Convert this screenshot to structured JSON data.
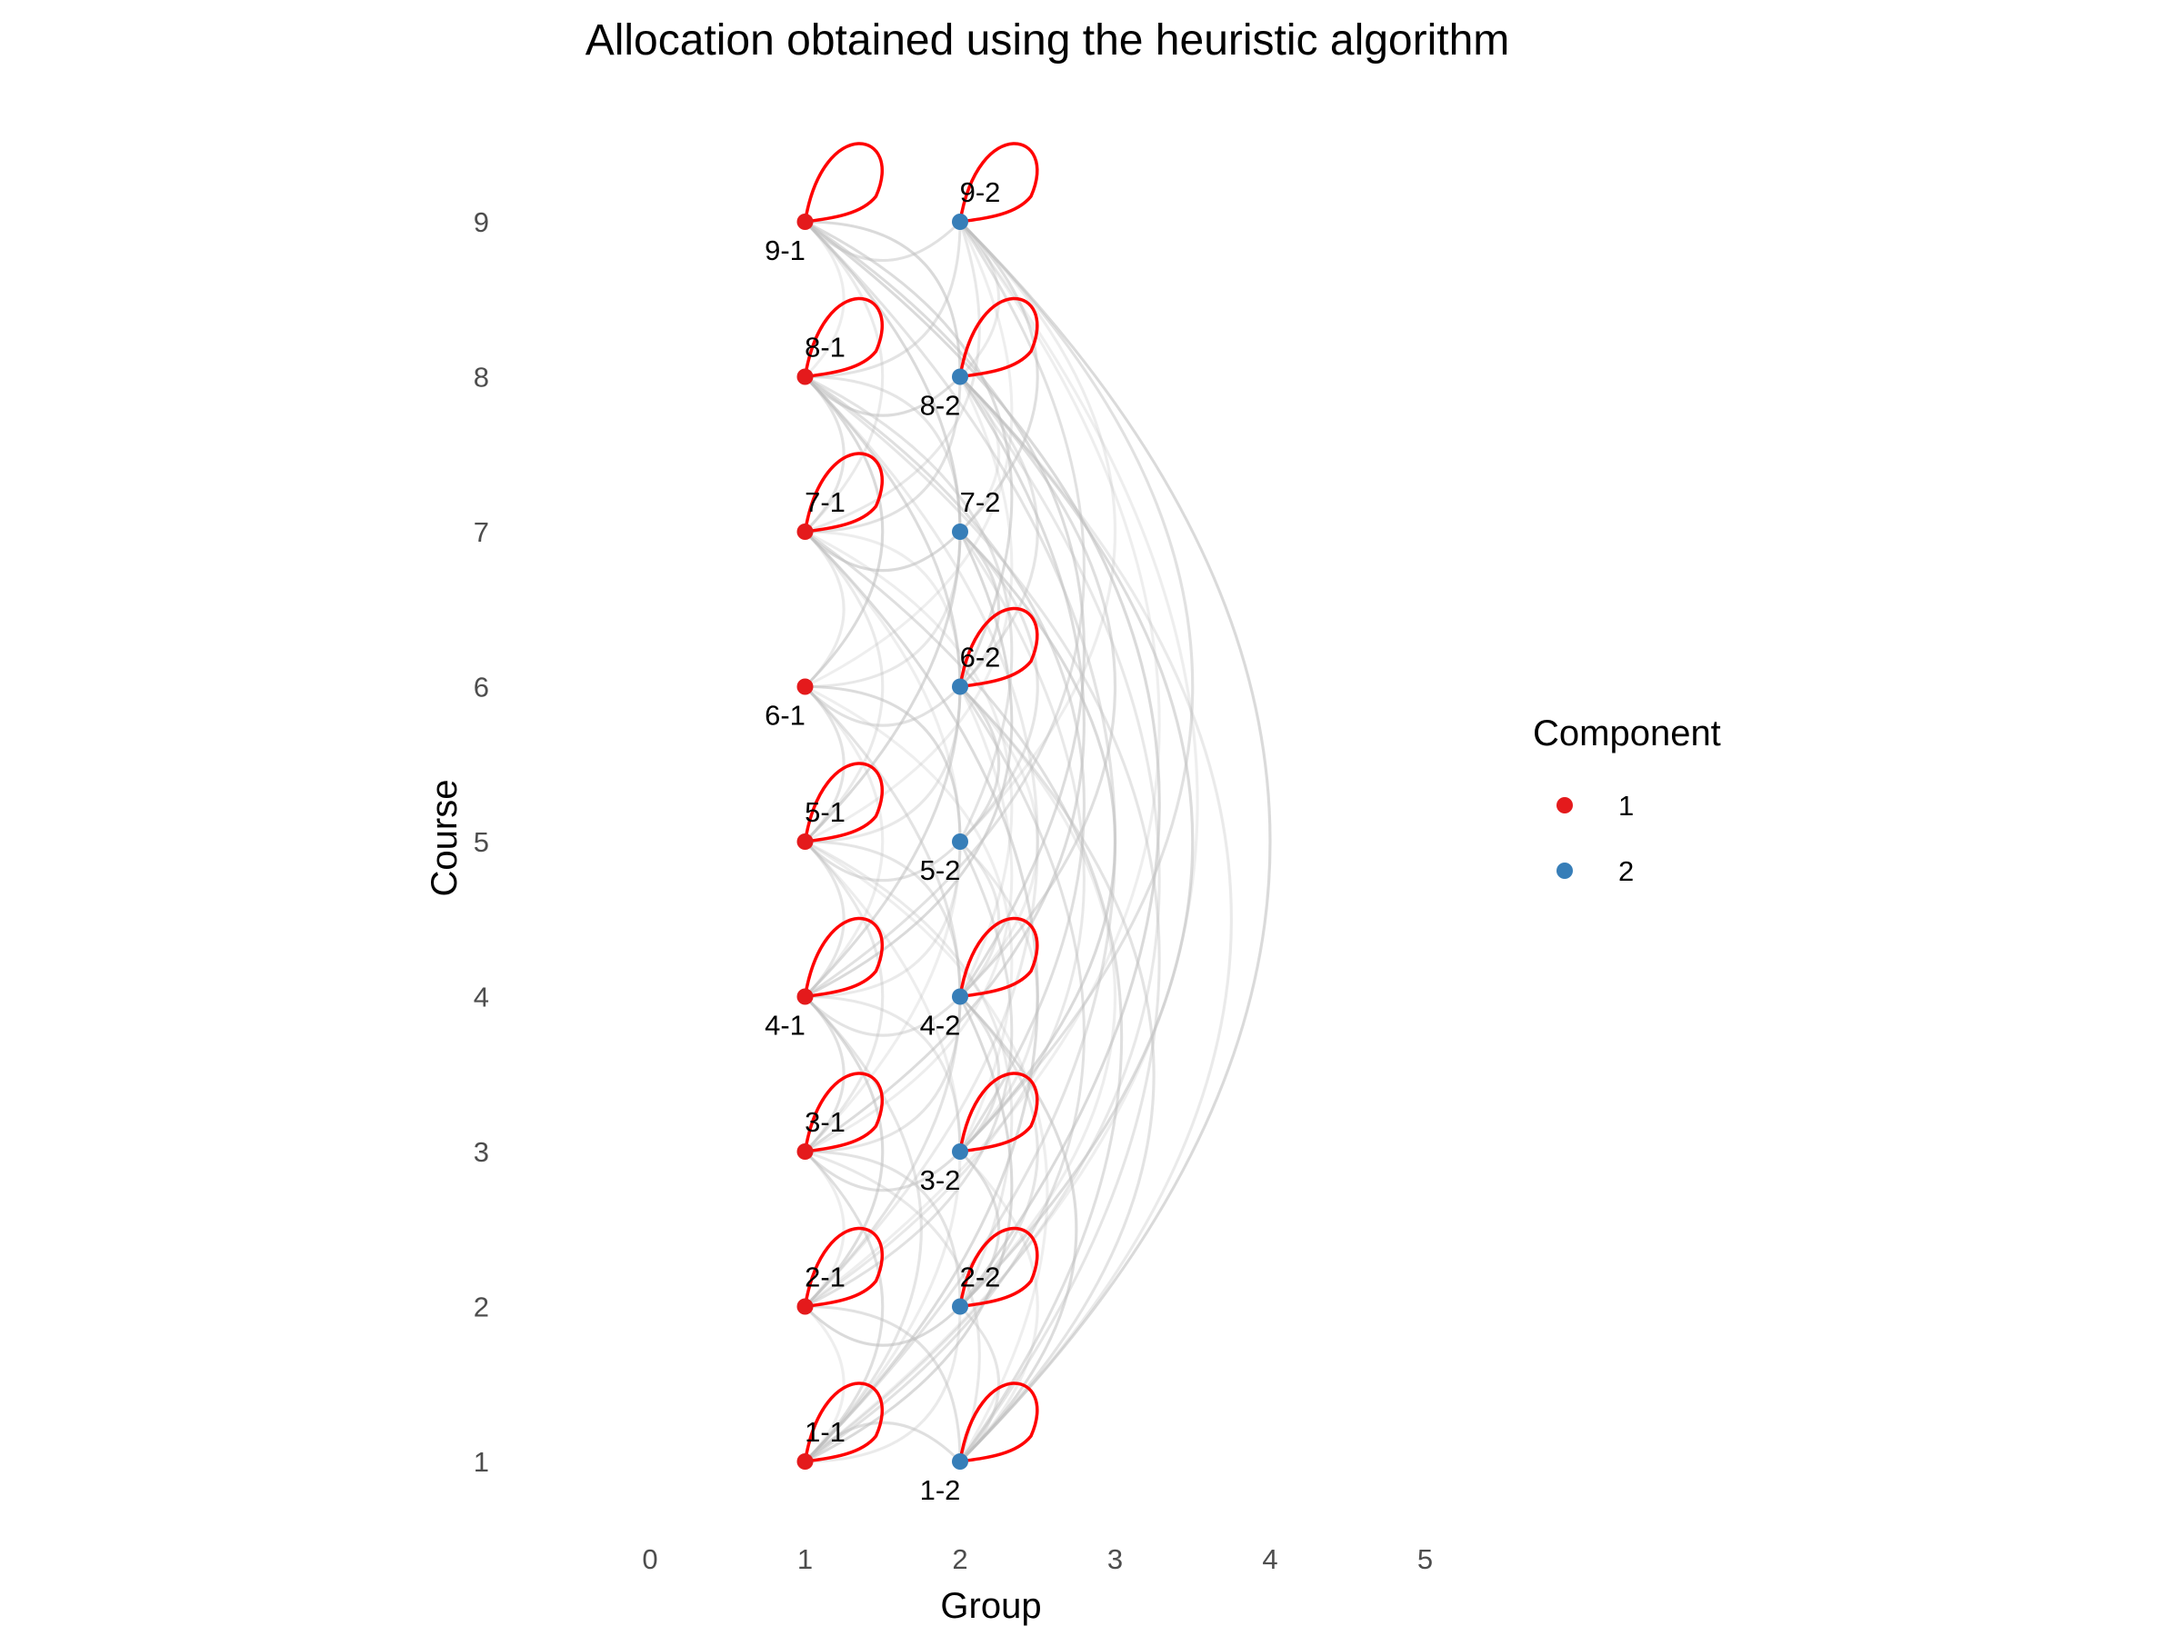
{
  "chart_data": {
    "type": "network",
    "title": "Allocation obtained using the heuristic algorithm",
    "xlabel": "Group",
    "ylabel": "Course",
    "xlim": [
      0,
      5
    ],
    "ylim": [
      1,
      9
    ],
    "x_ticks": [
      "0",
      "1",
      "2",
      "3",
      "4",
      "5"
    ],
    "y_ticks": [
      "1",
      "2",
      "3",
      "4",
      "5",
      "6",
      "7",
      "8",
      "9"
    ],
    "grid": false,
    "legend": {
      "title": "Component",
      "position": "right",
      "entries": [
        {
          "label": "1",
          "color": "#E41A1C"
        },
        {
          "label": "2",
          "color": "#377EB8"
        }
      ]
    },
    "nodes": [
      {
        "label": "1-1",
        "x": 1,
        "y": 1,
        "component": 1,
        "label_pos": "above",
        "self_loop": true
      },
      {
        "label": "1-2",
        "x": 2,
        "y": 1,
        "component": 2,
        "label_pos": "below",
        "self_loop": true
      },
      {
        "label": "2-1",
        "x": 1,
        "y": 2,
        "component": 1,
        "label_pos": "above",
        "self_loop": true
      },
      {
        "label": "2-2",
        "x": 2,
        "y": 2,
        "component": 2,
        "label_pos": "above",
        "self_loop": true
      },
      {
        "label": "3-1",
        "x": 1,
        "y": 3,
        "component": 1,
        "label_pos": "above",
        "self_loop": true
      },
      {
        "label": "3-2",
        "x": 2,
        "y": 3,
        "component": 2,
        "label_pos": "below",
        "self_loop": true
      },
      {
        "label": "4-1",
        "x": 1,
        "y": 4,
        "component": 1,
        "label_pos": "below",
        "self_loop": true
      },
      {
        "label": "4-2",
        "x": 2,
        "y": 4,
        "component": 2,
        "label_pos": "below",
        "self_loop": true
      },
      {
        "label": "5-1",
        "x": 1,
        "y": 5,
        "component": 1,
        "label_pos": "above",
        "self_loop": true
      },
      {
        "label": "5-2",
        "x": 2,
        "y": 5,
        "component": 2,
        "label_pos": "below",
        "self_loop": false
      },
      {
        "label": "6-1",
        "x": 1,
        "y": 6,
        "component": 1,
        "label_pos": "below",
        "self_loop": false
      },
      {
        "label": "6-2",
        "x": 2,
        "y": 6,
        "component": 2,
        "label_pos": "above",
        "self_loop": true
      },
      {
        "label": "7-1",
        "x": 1,
        "y": 7,
        "component": 1,
        "label_pos": "above",
        "self_loop": true
      },
      {
        "label": "7-2",
        "x": 2,
        "y": 7,
        "component": 2,
        "label_pos": "above",
        "self_loop": false
      },
      {
        "label": "8-1",
        "x": 1,
        "y": 8,
        "component": 1,
        "label_pos": "above",
        "self_loop": true
      },
      {
        "label": "8-2",
        "x": 2,
        "y": 8,
        "component": 2,
        "label_pos": "below",
        "self_loop": true
      },
      {
        "label": "9-1",
        "x": 1,
        "y": 9,
        "component": 1,
        "label_pos": "below",
        "self_loop": true
      },
      {
        "label": "9-2",
        "x": 2,
        "y": 9,
        "component": 2,
        "label_pos": "above",
        "self_loop": true
      }
    ],
    "edges": [
      [
        "1-1",
        "2-1"
      ],
      [
        "1-1",
        "3-1"
      ],
      [
        "1-1",
        "4-1"
      ],
      [
        "1-1",
        "5-1"
      ],
      [
        "1-1",
        "7-1"
      ],
      [
        "1-1",
        "9-1"
      ],
      [
        "1-1",
        "2-2"
      ],
      [
        "1-1",
        "4-2"
      ],
      [
        "1-1",
        "6-2"
      ],
      [
        "1-1",
        "8-2"
      ],
      [
        "1-1",
        "9-2"
      ],
      [
        "1-2",
        "1-1"
      ],
      [
        "1-2",
        "2-2"
      ],
      [
        "1-2",
        "3-2"
      ],
      [
        "1-2",
        "4-2"
      ],
      [
        "1-2",
        "6-2"
      ],
      [
        "1-2",
        "8-2"
      ],
      [
        "1-2",
        "9-2"
      ],
      [
        "1-2",
        "2-1"
      ],
      [
        "1-2",
        "3-1"
      ],
      [
        "1-2",
        "5-1"
      ],
      [
        "1-2",
        "7-1"
      ],
      [
        "1-2",
        "8-1"
      ],
      [
        "2-1",
        "3-1"
      ],
      [
        "2-1",
        "4-1"
      ],
      [
        "2-1",
        "6-1"
      ],
      [
        "2-1",
        "8-1"
      ],
      [
        "2-1",
        "2-2"
      ],
      [
        "2-1",
        "5-2"
      ],
      [
        "2-1",
        "7-2"
      ],
      [
        "2-1",
        "9-2"
      ],
      [
        "2-2",
        "3-2"
      ],
      [
        "2-2",
        "4-2"
      ],
      [
        "2-2",
        "6-2"
      ],
      [
        "2-2",
        "8-2"
      ],
      [
        "2-2",
        "3-1"
      ],
      [
        "2-2",
        "5-1"
      ],
      [
        "2-2",
        "9-1"
      ],
      [
        "3-1",
        "4-1"
      ],
      [
        "3-1",
        "5-1"
      ],
      [
        "3-1",
        "7-1"
      ],
      [
        "3-1",
        "3-2"
      ],
      [
        "3-1",
        "4-2"
      ],
      [
        "3-1",
        "6-2"
      ],
      [
        "3-1",
        "8-2"
      ],
      [
        "3-2",
        "4-2"
      ],
      [
        "3-2",
        "5-2"
      ],
      [
        "3-2",
        "7-2"
      ],
      [
        "3-2",
        "9-2"
      ],
      [
        "3-2",
        "4-1"
      ],
      [
        "3-2",
        "6-1"
      ],
      [
        "3-2",
        "8-1"
      ],
      [
        "4-1",
        "5-1"
      ],
      [
        "4-1",
        "6-1"
      ],
      [
        "4-1",
        "8-1"
      ],
      [
        "4-1",
        "4-2"
      ],
      [
        "4-1",
        "5-2"
      ],
      [
        "4-1",
        "7-2"
      ],
      [
        "4-1",
        "9-2"
      ],
      [
        "4-2",
        "5-2"
      ],
      [
        "4-2",
        "6-2"
      ],
      [
        "4-2",
        "8-2"
      ],
      [
        "4-2",
        "5-1"
      ],
      [
        "4-2",
        "7-1"
      ],
      [
        "4-2",
        "9-1"
      ],
      [
        "5-1",
        "6-1"
      ],
      [
        "5-1",
        "7-1"
      ],
      [
        "5-1",
        "9-1"
      ],
      [
        "5-1",
        "5-2"
      ],
      [
        "5-1",
        "6-2"
      ],
      [
        "5-1",
        "8-2"
      ],
      [
        "5-2",
        "6-2"
      ],
      [
        "5-2",
        "7-2"
      ],
      [
        "5-2",
        "9-2"
      ],
      [
        "5-2",
        "6-1"
      ],
      [
        "5-2",
        "8-1"
      ],
      [
        "6-1",
        "7-1"
      ],
      [
        "6-1",
        "8-1"
      ],
      [
        "6-1",
        "6-2"
      ],
      [
        "6-1",
        "7-2"
      ],
      [
        "6-1",
        "9-2"
      ],
      [
        "6-2",
        "7-2"
      ],
      [
        "6-2",
        "8-2"
      ],
      [
        "6-2",
        "7-1"
      ],
      [
        "6-2",
        "9-1"
      ],
      [
        "7-1",
        "8-1"
      ],
      [
        "7-1",
        "9-1"
      ],
      [
        "7-1",
        "7-2"
      ],
      [
        "7-1",
        "8-2"
      ],
      [
        "7-1",
        "9-2"
      ],
      [
        "7-2",
        "8-2"
      ],
      [
        "7-2",
        "9-2"
      ],
      [
        "7-2",
        "8-1"
      ],
      [
        "8-1",
        "9-1"
      ],
      [
        "8-1",
        "8-2"
      ],
      [
        "8-1",
        "9-2"
      ],
      [
        "8-2",
        "9-2"
      ],
      [
        "8-2",
        "9-1"
      ],
      [
        "9-1",
        "9-2"
      ]
    ],
    "colors": {
      "component_1": "#E41A1C",
      "component_2": "#377EB8",
      "self_loop": "#FF0000",
      "edge": "#BDBDBD"
    }
  }
}
